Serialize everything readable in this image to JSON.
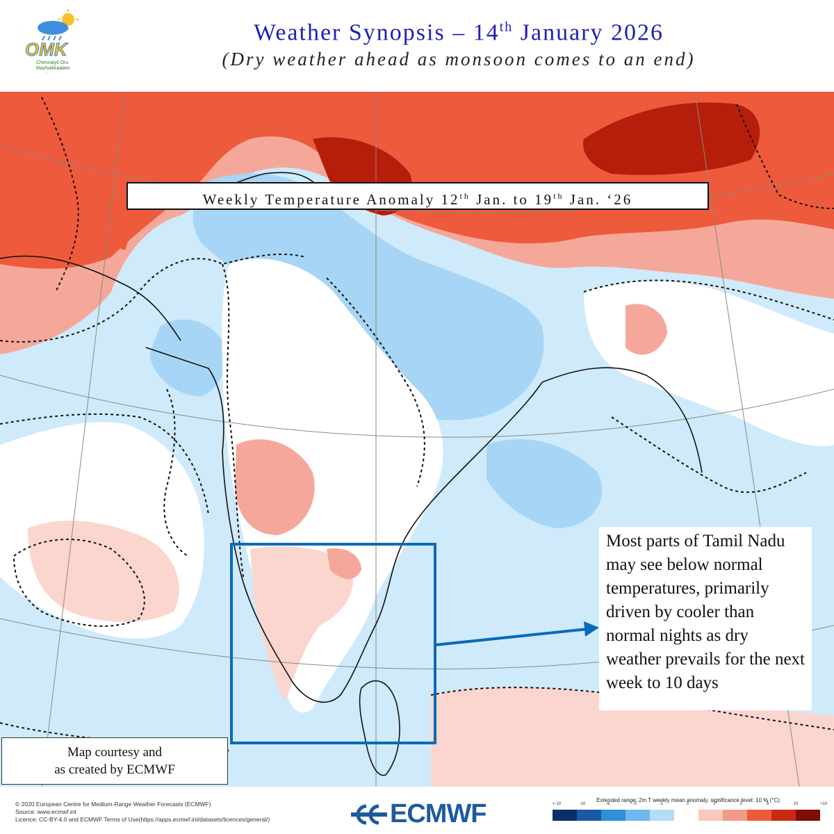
{
  "header": {
    "title_prefix": "Weather Synopsis – 14",
    "title_sup": "th",
    "title_suffix": " January 2026",
    "subtitle": "(Dry weather ahead as monsoon comes to an end)"
  },
  "logo": {
    "text": "OMK",
    "line1": "Chennaiyil Oru",
    "line2": "Mazhaikkaalam"
  },
  "map_label": {
    "p1": "Weekly Temperature Anomaly 12",
    "s1": "th",
    "p2": " Jan. to 19",
    "s2": "th",
    "p3": " Jan. ‘26"
  },
  "callout": {
    "text": "Most parts of Tamil Nadu may see below normal temperatures, primarily driven by cooler than normal nights as dry weather prevails for the next week to 10 days"
  },
  "courtesy": {
    "line1": "Map courtesy and",
    "line2": "as created by ECMWF"
  },
  "footer": {
    "copyright": "© 2020 European Centre for Medium-Range Weather Forecasts (ECMWF)",
    "source": "Source: www.ecmwf.int",
    "licence": "Licence: CC-BY-4.0 and ECMWF Terms of Use(https://apps.ecmwf.int/datasets/licences/general/)",
    "brand": "ECMWF"
  },
  "legend": {
    "title": "Extended range: 2m T weekly mean anomaly, significance level: 10 % (°C)",
    "ticks": [
      "<-10",
      "-10",
      "-6",
      "-3",
      "-1",
      "0",
      "1",
      "3",
      "6",
      "10",
      ">10"
    ],
    "colors": [
      "#0a2f6b",
      "#1a5aa6",
      "#2f8fd8",
      "#6fb8ef",
      "#b6dcf7",
      "#ffffff",
      "#f9c7bd",
      "#f19a86",
      "#ea5a3d",
      "#c92a14",
      "#7d0d05"
    ]
  },
  "colors": {
    "title_blue": "#1f1fb4",
    "box_blue": "#0a6ab8",
    "cold_light": "#cfeafb",
    "cold_mid": "#a7d5f5",
    "warm_light": "#fbd6cf",
    "warm_mid": "#f5a89a",
    "warm_strong": "#ee5a3c",
    "warm_dark": "#b71d0b"
  }
}
